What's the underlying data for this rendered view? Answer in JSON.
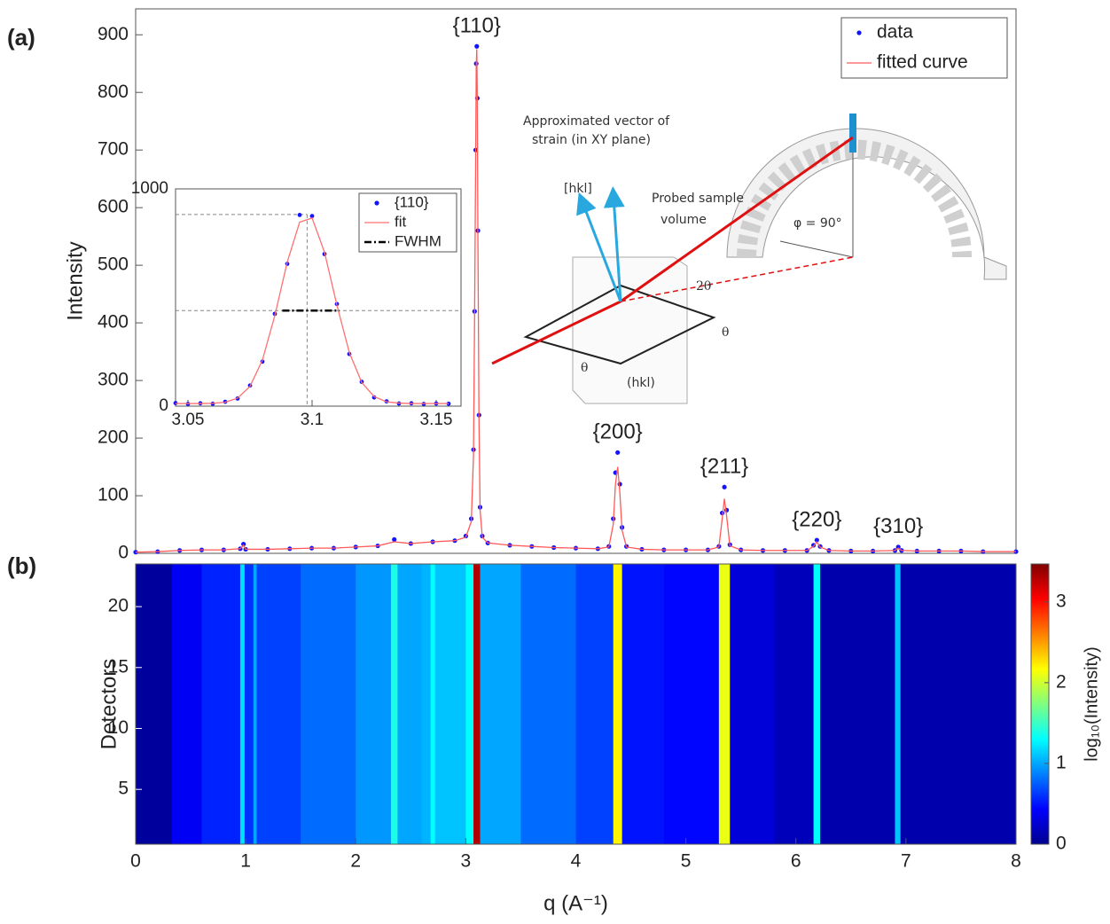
{
  "chart_data": [
    {
      "type": "line",
      "panel": "(a)",
      "ylabel": "Intensity",
      "x": [
        0,
        0.2,
        0.4,
        0.6,
        0.8,
        0.95,
        0.98,
        1.0,
        1.2,
        1.4,
        1.6,
        1.8,
        2.0,
        2.2,
        2.35,
        2.5,
        2.7,
        2.9,
        3.0,
        3.05,
        3.07,
        3.08,
        3.09,
        3.095,
        3.1,
        3.105,
        3.11,
        3.12,
        3.13,
        3.15,
        3.2,
        3.4,
        3.6,
        3.8,
        4.0,
        4.2,
        4.3,
        4.34,
        4.36,
        4.38,
        4.4,
        4.42,
        4.46,
        4.6,
        4.8,
        5.0,
        5.2,
        5.3,
        5.33,
        5.35,
        5.37,
        5.4,
        5.5,
        5.7,
        5.9,
        6.1,
        6.16,
        6.19,
        6.22,
        6.3,
        6.5,
        6.7,
        6.9,
        6.93,
        6.96,
        7.1,
        7.3,
        7.5,
        7.7,
        8.0
      ],
      "series": [
        {
          "name": "data",
          "color": "#1414ff",
          "marker": "dot",
          "values": [
            2,
            3,
            5,
            6,
            6,
            8,
            16,
            7,
            7,
            8,
            9,
            9,
            11,
            13,
            24,
            17,
            20,
            22,
            30,
            60,
            180,
            420,
            700,
            850,
            880,
            790,
            560,
            240,
            80,
            30,
            18,
            14,
            12,
            10,
            9,
            8,
            12,
            60,
            140,
            175,
            120,
            45,
            12,
            7,
            6,
            6,
            6,
            12,
            70,
            115,
            75,
            15,
            6,
            5,
            5,
            5,
            14,
            23,
            12,
            5,
            4,
            4,
            5,
            11,
            5,
            4,
            4,
            4,
            3,
            3
          ]
        },
        {
          "name": "fitted curve",
          "color": "#ff5a5a",
          "marker": "line",
          "values": [
            2,
            3,
            5,
            6,
            6,
            8,
            14,
            7,
            7,
            8,
            9,
            9,
            11,
            13,
            20,
            17,
            20,
            22,
            28,
            55,
            170,
            410,
            690,
            845,
            875,
            780,
            550,
            230,
            75,
            28,
            18,
            14,
            12,
            10,
            9,
            8,
            11,
            50,
            120,
            150,
            105,
            40,
            11,
            7,
            6,
            6,
            6,
            11,
            60,
            95,
            65,
            13,
            6,
            5,
            5,
            5,
            12,
            20,
            11,
            5,
            4,
            4,
            5,
            9,
            5,
            4,
            4,
            4,
            3,
            3
          ]
        }
      ],
      "xlim": [
        0,
        8
      ],
      "ylim": [
        0,
        945
      ],
      "yticks": [
        0,
        100,
        200,
        300,
        400,
        500,
        600,
        700,
        800,
        900
      ],
      "annotations": [
        {
          "text": "{110}",
          "x": 3.1,
          "y": 880
        },
        {
          "text": "{200}",
          "x": 4.38,
          "y": 175
        },
        {
          "text": "{211}",
          "x": 5.35,
          "y": 115
        },
        {
          "text": "{220}",
          "x": 6.19,
          "y": 23
        },
        {
          "text": "{310}",
          "x": 6.93,
          "y": 11
        }
      ],
      "legend": "upper right"
    },
    {
      "type": "line",
      "x": [
        3.045,
        3.05,
        3.055,
        3.06,
        3.065,
        3.07,
        3.075,
        3.08,
        3.085,
        3.09,
        3.095,
        3.1,
        3.105,
        3.11,
        3.115,
        3.12,
        3.125,
        3.13,
        3.135,
        3.14,
        3.145,
        3.15,
        3.155
      ],
      "series": [
        {
          "name": "{110}",
          "color": "#1414ff",
          "marker": "dot",
          "values": [
            14,
            10,
            13,
            11,
            20,
            35,
            95,
            205,
            425,
            655,
            880,
            875,
            700,
            470,
            240,
            112,
            40,
            22,
            12,
            13,
            10,
            12,
            11
          ]
        },
        {
          "name": "fit",
          "color": "#ff7070",
          "marker": "line",
          "values": [
            12,
            12,
            12,
            13,
            18,
            37,
            91,
            212,
            417,
            663,
            847,
            866,
            709,
            465,
            247,
            109,
            44,
            20,
            14,
            12,
            12,
            12,
            12
          ]
        },
        {
          "name": "FWHM",
          "color": "#000000",
          "marker": "dash",
          "x": [
            3.088,
            3.111
          ],
          "values": [
            440,
            440
          ]
        }
      ],
      "peak": {
        "x": 3.098,
        "y": 882
      },
      "xlim": [
        3.045,
        3.16
      ],
      "ylim": [
        0,
        1000
      ],
      "xticks": [
        3.05,
        3.1,
        3.15
      ],
      "yticks": [
        0,
        1000
      ],
      "legend": "upper right"
    },
    {
      "type": "heatmap",
      "panel": "(b)",
      "xlabel": "q (A⁻¹)",
      "ylabel": "Detectors",
      "colormap": "jet",
      "x_edges": [
        0,
        0.33,
        0.6,
        0.95,
        0.99,
        1.07,
        1.1,
        1.5,
        2.0,
        2.32,
        2.38,
        2.6,
        2.68,
        2.72,
        3.0,
        3.07,
        3.13,
        3.5,
        4.0,
        4.34,
        4.42,
        4.8,
        5.3,
        5.4,
        5.8,
        6.16,
        6.22,
        6.6,
        6.9,
        6.95,
        7.5,
        8.0
      ],
      "values": [
        0.1,
        0.4,
        0.55,
        1.2,
        0.6,
        1.0,
        0.65,
        0.8,
        0.95,
        1.4,
        1.0,
        1.05,
        1.3,
        1.1,
        1.3,
        3.3,
        1.0,
        0.8,
        0.65,
        2.2,
        0.5,
        0.45,
        2.1,
        0.3,
        0.2,
        1.3,
        0.15,
        0.15,
        1.1,
        0.15,
        0.15
      ],
      "xlim": [
        0,
        8
      ],
      "xticks": [
        0,
        1,
        2,
        3,
        4,
        5,
        6,
        7,
        8
      ],
      "ylim": [
        0.5,
        23.5
      ],
      "yticks": [
        5,
        10,
        15,
        20
      ],
      "colorbar": {
        "label": "log₁₀(Intensity)",
        "lim": [
          0,
          3.47
        ],
        "ticks": [
          0,
          1,
          2,
          3
        ]
      }
    }
  ],
  "diagram": {
    "strain_vector": [
      "Approximated vector of",
      "strain (in XY plane)"
    ],
    "hkl_vector": "[hkl]",
    "volume": [
      "Probed sample",
      "volume"
    ],
    "two_theta": "2θ",
    "theta": [
      "θ",
      "θ"
    ],
    "plane": "(hkl)",
    "phi": "φ = 90°"
  }
}
